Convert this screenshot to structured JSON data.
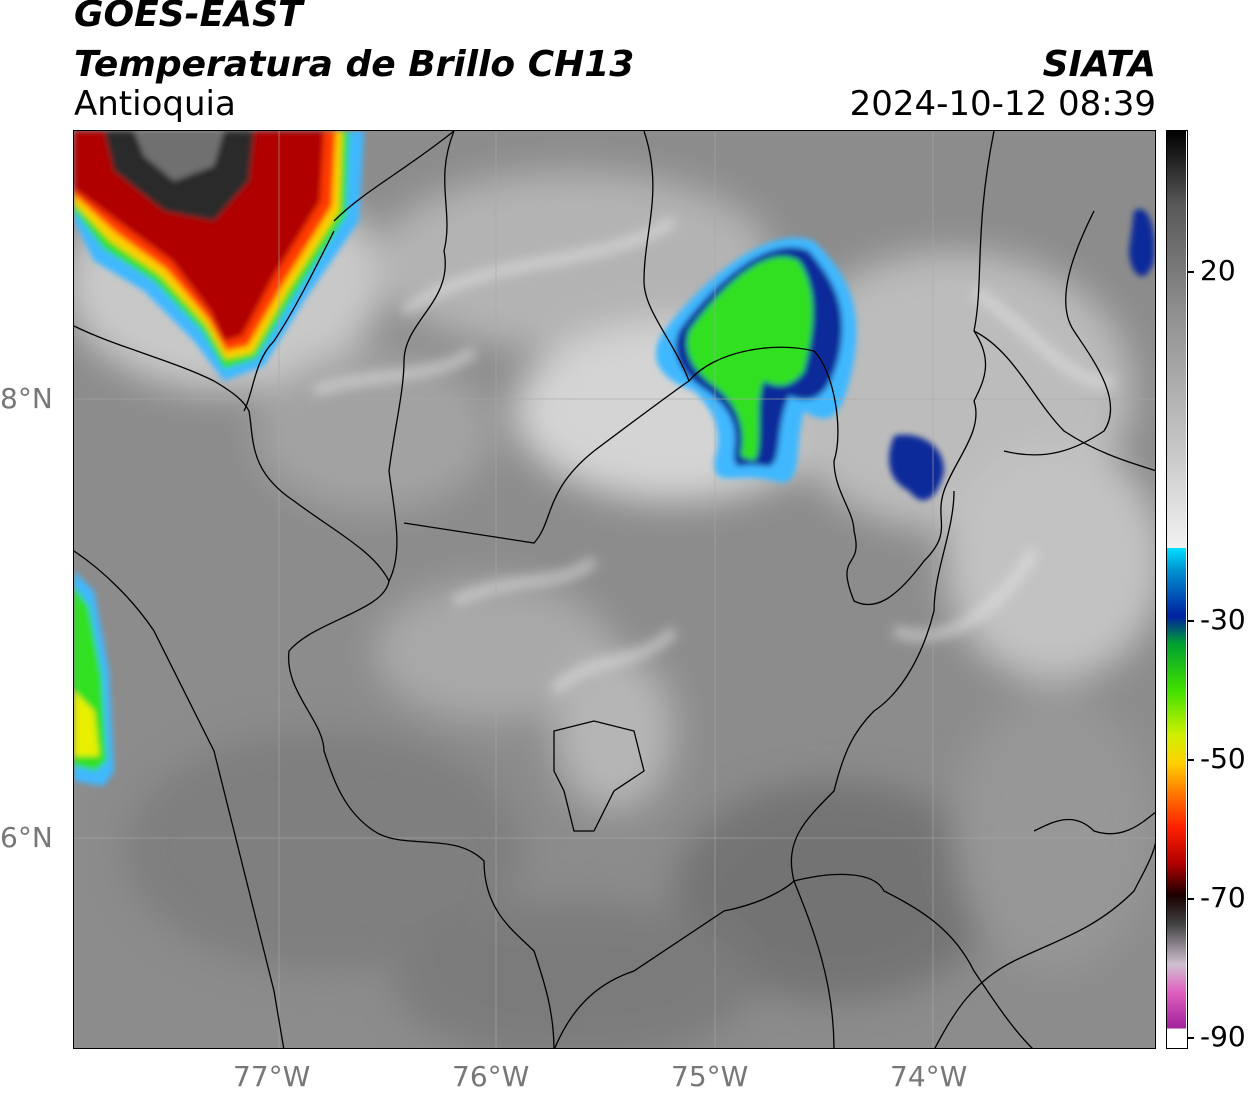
{
  "header": {
    "satellite": "GOES-EAST",
    "product": "Temperatura de Brillo CH13",
    "region": "Antioquia",
    "agency": "SIATA",
    "datetime": "2024-10-12 08:39"
  },
  "map": {
    "lon_labels": [
      "77°W",
      "76°W",
      "75°W",
      "74°W"
    ],
    "lat_labels": [
      "8°N",
      "6°N"
    ],
    "colors": {
      "background_gray": "#8a8a8a",
      "border_line": "#000000",
      "grid_line": "#a8a8a8"
    }
  },
  "colorbar": {
    "tick_labels": [
      "20",
      "-30",
      "-50",
      "-70",
      "-90"
    ],
    "colors": [
      "#ffffff",
      "#a0209a",
      "#e060c0",
      "#d0c0d0",
      "#404040",
      "#1a0000",
      "#b00000",
      "#ff2000",
      "#ff8000",
      "#ffd000",
      "#d0f000",
      "#40e000",
      "#00a030",
      "#0020a0",
      "#0090d0",
      "#00e0ff",
      "#f2f2f2",
      "#c8c8c8",
      "#909090",
      "#585858",
      "#202020",
      "#000000"
    ]
  }
}
